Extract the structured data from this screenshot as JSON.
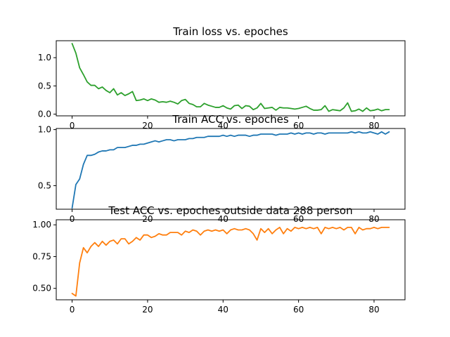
{
  "chart_data": [
    {
      "type": "line",
      "title": "Train loss vs. epoches",
      "xlabel": "",
      "ylabel": "",
      "xlim": [
        -4.2,
        88.2
      ],
      "ylim": [
        -0.03,
        1.3
      ],
      "xticks": [
        0,
        20,
        40,
        60,
        80
      ],
      "yticks": [
        0.0,
        0.5,
        1.0
      ],
      "xtick_labels": [
        "0",
        "20",
        "40",
        "60",
        "80"
      ],
      "ytick_labels": [
        "0.0",
        "0.5",
        "1.0"
      ],
      "grid": false,
      "series": [
        {
          "color": "#2ca02c",
          "x": [
            0,
            1,
            2,
            3,
            4,
            5,
            6,
            7,
            8,
            9,
            10,
            11,
            12,
            13,
            14,
            15,
            16,
            17,
            18,
            19,
            20,
            21,
            22,
            23,
            24,
            25,
            26,
            27,
            28,
            29,
            30,
            31,
            32,
            33,
            34,
            35,
            36,
            37,
            38,
            39,
            40,
            41,
            42,
            43,
            44,
            45,
            46,
            47,
            48,
            49,
            50,
            51,
            52,
            53,
            54,
            55,
            56,
            57,
            58,
            59,
            60,
            61,
            62,
            63,
            64,
            65,
            66,
            67,
            68,
            69,
            70,
            71,
            72,
            73,
            74,
            75,
            76,
            77,
            78,
            79,
            80,
            81,
            82,
            83,
            84
          ],
          "values": [
            1.25,
            1.08,
            0.82,
            0.7,
            0.57,
            0.51,
            0.51,
            0.45,
            0.48,
            0.42,
            0.38,
            0.45,
            0.34,
            0.38,
            0.33,
            0.36,
            0.4,
            0.24,
            0.25,
            0.27,
            0.24,
            0.27,
            0.25,
            0.21,
            0.22,
            0.21,
            0.23,
            0.21,
            0.18,
            0.24,
            0.26,
            0.19,
            0.17,
            0.13,
            0.13,
            0.19,
            0.16,
            0.14,
            0.12,
            0.12,
            0.15,
            0.11,
            0.09,
            0.15,
            0.16,
            0.1,
            0.15,
            0.14,
            0.08,
            0.11,
            0.19,
            0.1,
            0.11,
            0.12,
            0.07,
            0.12,
            0.11,
            0.11,
            0.1,
            0.09,
            0.1,
            0.12,
            0.14,
            0.1,
            0.07,
            0.07,
            0.08,
            0.15,
            0.05,
            0.08,
            0.07,
            0.06,
            0.11,
            0.2,
            0.05,
            0.06,
            0.09,
            0.05,
            0.11,
            0.06,
            0.07,
            0.09,
            0.06,
            0.08,
            0.08
          ]
        }
      ]
    },
    {
      "type": "line",
      "title": "Train ACC vs. epoches",
      "xlabel": "",
      "ylabel": "",
      "xlim": [
        -4.2,
        88.2
      ],
      "ylim": [
        0.29,
        1.01
      ],
      "xticks": [
        0,
        20,
        40,
        60,
        80
      ],
      "yticks": [
        0.5,
        1.0
      ],
      "xtick_labels": [
        "0",
        "20",
        "40",
        "60",
        "80"
      ],
      "ytick_labels": [
        "0.5",
        "1.0"
      ],
      "grid": false,
      "series": [
        {
          "color": "#1f77b4",
          "x": [
            0,
            1,
            2,
            3,
            4,
            5,
            6,
            7,
            8,
            9,
            10,
            11,
            12,
            13,
            14,
            15,
            16,
            17,
            18,
            19,
            20,
            21,
            22,
            23,
            24,
            25,
            26,
            27,
            28,
            29,
            30,
            31,
            32,
            33,
            34,
            35,
            36,
            37,
            38,
            39,
            40,
            41,
            42,
            43,
            44,
            45,
            46,
            47,
            48,
            49,
            50,
            51,
            52,
            53,
            54,
            55,
            56,
            57,
            58,
            59,
            60,
            61,
            62,
            63,
            64,
            65,
            66,
            67,
            68,
            69,
            70,
            71,
            72,
            73,
            74,
            75,
            76,
            77,
            78,
            79,
            80,
            81,
            82,
            83,
            84
          ],
          "values": [
            0.3,
            0.51,
            0.56,
            0.69,
            0.77,
            0.77,
            0.78,
            0.8,
            0.81,
            0.81,
            0.82,
            0.82,
            0.84,
            0.84,
            0.84,
            0.85,
            0.86,
            0.86,
            0.87,
            0.87,
            0.88,
            0.89,
            0.9,
            0.89,
            0.9,
            0.91,
            0.91,
            0.9,
            0.91,
            0.91,
            0.91,
            0.92,
            0.92,
            0.93,
            0.93,
            0.93,
            0.94,
            0.94,
            0.94,
            0.94,
            0.95,
            0.94,
            0.95,
            0.94,
            0.95,
            0.95,
            0.95,
            0.94,
            0.95,
            0.95,
            0.96,
            0.96,
            0.96,
            0.96,
            0.95,
            0.96,
            0.96,
            0.96,
            0.97,
            0.96,
            0.97,
            0.96,
            0.97,
            0.97,
            0.96,
            0.97,
            0.97,
            0.96,
            0.97,
            0.97,
            0.97,
            0.97,
            0.97,
            0.97,
            0.98,
            0.97,
            0.98,
            0.97,
            0.97,
            0.98,
            0.97,
            0.96,
            0.98,
            0.96,
            0.98
          ]
        }
      ]
    },
    {
      "type": "line",
      "title": "Test ACC vs. epoches outside data 288 person",
      "xlabel": "",
      "ylabel": "",
      "xlim": [
        -4.2,
        88.2
      ],
      "ylim": [
        0.41,
        1.04
      ],
      "xticks": [
        0,
        20,
        40,
        60,
        80
      ],
      "yticks": [
        0.5,
        0.75,
        1.0
      ],
      "xtick_labels": [
        "0",
        "20",
        "40",
        "60",
        "80"
      ],
      "ytick_labels": [
        "0.50",
        "0.75",
        "1.00"
      ],
      "grid": false,
      "series": [
        {
          "color": "#ff7f0e",
          "x": [
            0,
            1,
            2,
            3,
            4,
            5,
            6,
            7,
            8,
            9,
            10,
            11,
            12,
            13,
            14,
            15,
            16,
            17,
            18,
            19,
            20,
            21,
            22,
            23,
            24,
            25,
            26,
            27,
            28,
            29,
            30,
            31,
            32,
            33,
            34,
            35,
            36,
            37,
            38,
            39,
            40,
            41,
            42,
            43,
            44,
            45,
            46,
            47,
            48,
            49,
            50,
            51,
            52,
            53,
            54,
            55,
            56,
            57,
            58,
            59,
            60,
            61,
            62,
            63,
            64,
            65,
            66,
            67,
            68,
            69,
            70,
            71,
            72,
            73,
            74,
            75,
            76,
            77,
            78,
            79,
            80,
            81,
            82,
            83,
            84
          ],
          "values": [
            0.46,
            0.44,
            0.7,
            0.82,
            0.78,
            0.83,
            0.86,
            0.83,
            0.87,
            0.84,
            0.87,
            0.88,
            0.85,
            0.89,
            0.89,
            0.85,
            0.87,
            0.9,
            0.88,
            0.92,
            0.92,
            0.9,
            0.91,
            0.93,
            0.92,
            0.92,
            0.94,
            0.94,
            0.94,
            0.92,
            0.95,
            0.94,
            0.96,
            0.95,
            0.92,
            0.95,
            0.96,
            0.95,
            0.96,
            0.95,
            0.96,
            0.93,
            0.96,
            0.97,
            0.96,
            0.96,
            0.97,
            0.96,
            0.93,
            0.88,
            0.97,
            0.94,
            0.97,
            0.93,
            0.96,
            0.98,
            0.93,
            0.97,
            0.95,
            0.98,
            0.97,
            0.98,
            0.97,
            0.98,
            0.97,
            0.98,
            0.93,
            0.98,
            0.97,
            0.98,
            0.97,
            0.98,
            0.96,
            0.98,
            0.98,
            0.93,
            0.98,
            0.96,
            0.97,
            0.97,
            0.98,
            0.97,
            0.98,
            0.98,
            0.98
          ]
        }
      ]
    }
  ]
}
